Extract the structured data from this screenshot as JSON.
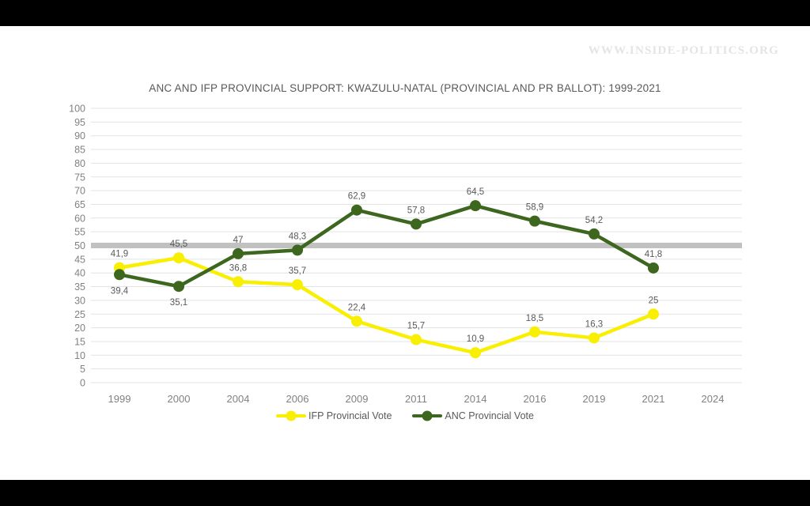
{
  "watermark": "WWW.INSIDE-POLITICS.ORG",
  "chart_data": {
    "type": "line",
    "title": "ANC AND IFP PROVINCIAL SUPPORT: KWAZULU-NATAL (PROVINCIAL AND PR BALLOT): 1999-2021",
    "categories": [
      "1999",
      "2000",
      "2004",
      "2006",
      "2009",
      "2011",
      "2014",
      "2016",
      "2019",
      "2021",
      "2024"
    ],
    "series": [
      {
        "name": "IFP Provincial Vote",
        "color": "#f8ef02",
        "values": [
          41.9,
          45.5,
          36.8,
          35.7,
          22.4,
          15.7,
          10.9,
          18.5,
          16.3,
          25
        ],
        "labels": [
          "41,9",
          "45,5",
          "36,8",
          "35,7",
          "22,4",
          "15,7",
          "10,9",
          "18,5",
          "16,3",
          "25"
        ],
        "label_positions": [
          "above",
          "above",
          "above",
          "above",
          "above",
          "above",
          "above",
          "above",
          "above",
          "above"
        ]
      },
      {
        "name": "ANC Provincial Vote",
        "color": "#3d661f",
        "values": [
          39.4,
          35.1,
          47,
          48.3,
          62.9,
          57.8,
          64.5,
          58.9,
          54.2,
          41.8
        ],
        "labels": [
          "39,4",
          "35,1",
          "47",
          "48,3",
          "62,9",
          "57,8",
          "64,5",
          "58,9",
          "54,2",
          "41,8"
        ],
        "label_positions": [
          "below",
          "below",
          "above",
          "above",
          "above",
          "above",
          "above",
          "above",
          "above",
          "above"
        ]
      }
    ],
    "ylim": [
      0,
      100
    ],
    "ytick_step": 5,
    "reference_line": {
      "value": 50,
      "color": "#c1c1c1"
    },
    "grid": true,
    "legend_position": "bottom",
    "colors": {
      "grid": "#e3e3e3",
      "tick_text": "#818181",
      "label_text": "#595959"
    }
  }
}
